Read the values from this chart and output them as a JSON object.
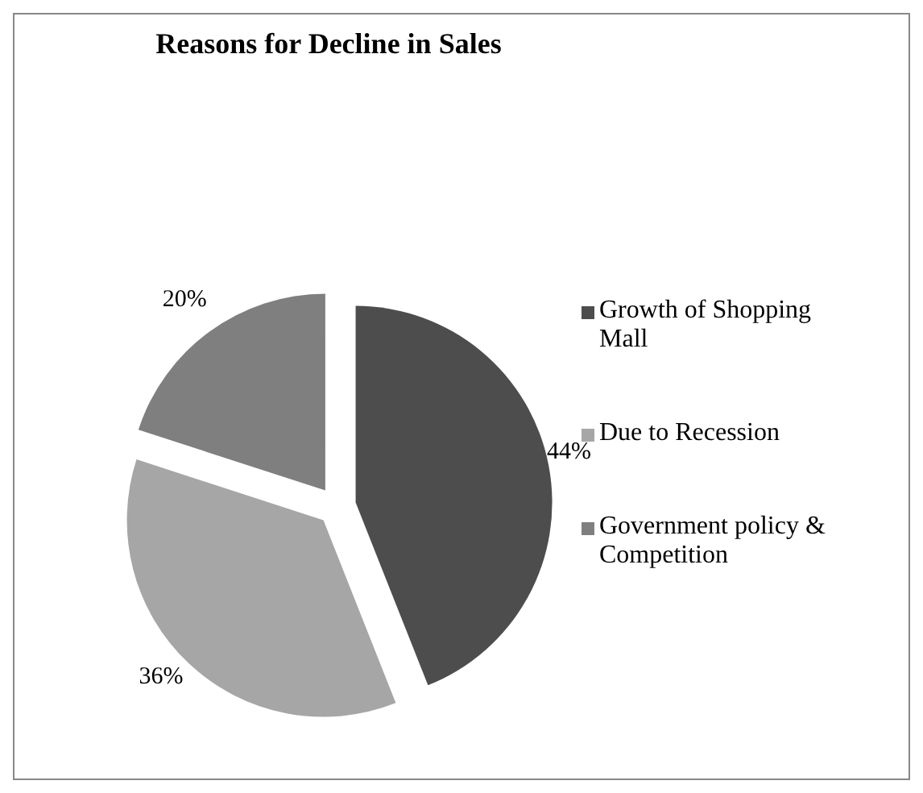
{
  "chart_data": {
    "type": "pie",
    "title": "Reasons for Decline in Sales",
    "categories": [
      "Growth of Shopping Mall",
      "Due to Recession",
      "Government policy & Competition"
    ],
    "values": [
      44,
      36,
      20
    ],
    "colors": [
      "#4d4d4d",
      "#a6a6a6",
      "#7f7f7f"
    ],
    "value_labels": [
      "44%",
      "36%",
      "20%"
    ],
    "legend": "right"
  }
}
